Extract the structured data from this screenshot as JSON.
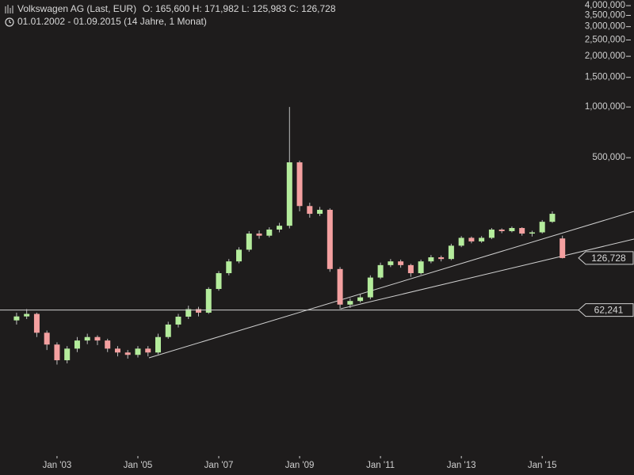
{
  "chart_data": {
    "type": "candlestick",
    "title": "Volkswagen AG (Last, EUR)",
    "ohlc_text": "O: 165,600  H: 171,982  L: 125,983  C: 126,728",
    "subtitle": "01.01.2002 - 01.09.2015 (14 Jahre, 1 Monat)",
    "log_scale": true,
    "up_color": "#b4ec9c",
    "down_color": "#f4a0a0",
    "wick_color": "#bdbdbd",
    "line_color": "#d0d0d0",
    "x": [
      2002,
      2002.25,
      2002.5,
      2002.75,
      2003,
      2003.25,
      2003.5,
      2003.75,
      2004,
      2004.25,
      2004.5,
      2004.75,
      2005,
      2005.25,
      2005.5,
      2005.75,
      2006,
      2006.25,
      2006.5,
      2006.75,
      2007,
      2007.25,
      2007.5,
      2007.75,
      2008,
      2008.25,
      2008.5,
      2008.75,
      2009,
      2009.25,
      2009.5,
      2009.75,
      2010,
      2010.25,
      2010.5,
      2010.75,
      2011,
      2011.25,
      2011.5,
      2011.75,
      2012,
      2012.25,
      2012.5,
      2012.75,
      2013,
      2013.25,
      2013.5,
      2013.75,
      2014,
      2014.25,
      2014.5,
      2014.75,
      2015,
      2015.25,
      2015.5
    ],
    "open": [
      54000,
      57000,
      59000,
      45600,
      38800,
      31300,
      36700,
      41000,
      43000,
      41000,
      36700,
      34800,
      33700,
      36700,
      34800,
      43000,
      51000,
      56800,
      63000,
      60000,
      83000,
      103000,
      121000,
      142000,
      177000,
      172000,
      187000,
      197000,
      469000,
      258000,
      232000,
      245000,
      109000,
      67000,
      70400,
      74000,
      97000,
      115000,
      121000,
      115000,
      103000,
      121000,
      128000,
      125000,
      150000,
      167000,
      159000,
      167000,
      187000,
      183000,
      191000,
      177000,
      180000,
      208000,
      165600
    ],
    "high": [
      60000,
      63000,
      60000,
      47000,
      40000,
      38000,
      43000,
      45000,
      44000,
      42000,
      38000,
      36000,
      38000,
      38000,
      45000,
      53000,
      59000,
      66000,
      65000,
      85000,
      106000,
      125000,
      147000,
      183000,
      185000,
      193000,
      205000,
      1000000,
      480000,
      270000,
      255000,
      250000,
      112000,
      73000,
      77000,
      100000,
      119000,
      125000,
      124000,
      117000,
      124000,
      132000,
      131000,
      154000,
      171000,
      170000,
      171000,
      191000,
      190000,
      195000,
      193000,
      184000,
      213000,
      240000,
      171982
    ],
    "low": [
      51000,
      55000,
      43000,
      36000,
      29500,
      30000,
      35000,
      39000,
      38500,
      35000,
      33000,
      32000,
      32500,
      33000,
      34000,
      42000,
      49000,
      55000,
      57000,
      59000,
      81000,
      100000,
      118000,
      138000,
      165000,
      168000,
      180000,
      190000,
      240000,
      220000,
      225000,
      105000,
      63000,
      64000,
      69000,
      72000,
      95000,
      112000,
      111000,
      98000,
      101000,
      118000,
      121000,
      123000,
      147000,
      155000,
      156000,
      164000,
      178000,
      180000,
      172000,
      170000,
      177000,
      205000,
      125983
    ],
    "close": [
      57000,
      59000,
      45600,
      38800,
      31300,
      36700,
      41000,
      43000,
      41000,
      36700,
      34800,
      33700,
      36700,
      34800,
      43000,
      51000,
      56800,
      63000,
      60000,
      83000,
      103000,
      121000,
      142000,
      177000,
      172000,
      187000,
      197000,
      469000,
      258000,
      232000,
      245000,
      109000,
      67000,
      70400,
      74000,
      97000,
      115000,
      121000,
      115000,
      103000,
      121000,
      128000,
      125000,
      150000,
      167000,
      159000,
      167000,
      187000,
      183000,
      191000,
      177000,
      180000,
      208000,
      232000,
      126728
    ],
    "xlim": [
      2001.59,
      2017.27
    ],
    "xticks": [
      {
        "value": 2003,
        "label": "Jan '03"
      },
      {
        "value": 2005,
        "label": "Jan '05"
      },
      {
        "value": 2007,
        "label": "Jan '07"
      },
      {
        "value": 2009,
        "label": "Jan '09"
      },
      {
        "value": 2011,
        "label": "Jan '11"
      },
      {
        "value": 2013,
        "label": "Jan '13"
      },
      {
        "value": 2015,
        "label": "Jan '15"
      }
    ],
    "ylim": [
      8540,
      4320000
    ],
    "yticks": [
      {
        "value": 500000,
        "label": "500,000"
      },
      {
        "value": 1000000,
        "label": "1,000,000"
      },
      {
        "value": 1500000,
        "label": "1,500,000"
      },
      {
        "value": 2000000,
        "label": "2,000,000"
      },
      {
        "value": 2500000,
        "label": "2,500,000"
      },
      {
        "value": 3000000,
        "label": "3,000,000"
      },
      {
        "value": 3500000,
        "label": "3,500,000"
      },
      {
        "value": 4000000,
        "label": "4,000,000"
      }
    ],
    "price_tags": [
      {
        "value": 126728,
        "label": "126,728",
        "hline": false
      },
      {
        "value": 62241,
        "label": "62,241",
        "hline": true
      }
    ]
  }
}
